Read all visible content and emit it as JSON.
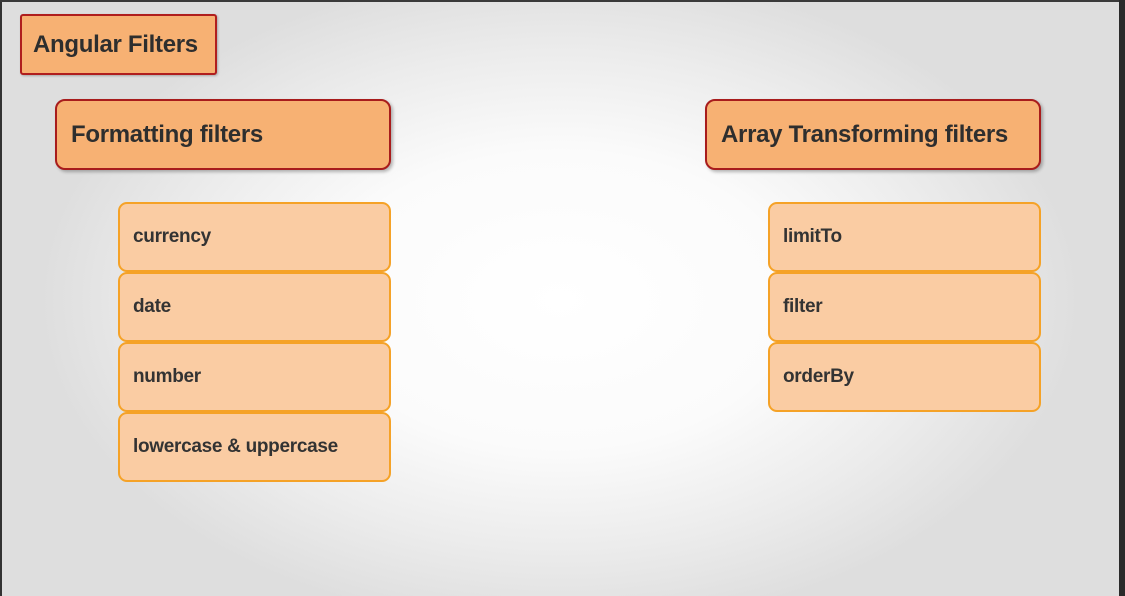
{
  "title": "Angular Filters",
  "sections": [
    {
      "heading": "Formatting filters",
      "items": [
        "currency",
        "date",
        "number",
        "lowercase & uppercase"
      ]
    },
    {
      "heading": "Array Transforming filters",
      "items": [
        "limitTo",
        "filter",
        "orderBy"
      ]
    }
  ],
  "colors": {
    "header_fill": "#f7b173",
    "header_border": "#a81c1c",
    "item_fill": "#facca3",
    "item_border": "#f5a227",
    "text": "#2e2e2e"
  }
}
